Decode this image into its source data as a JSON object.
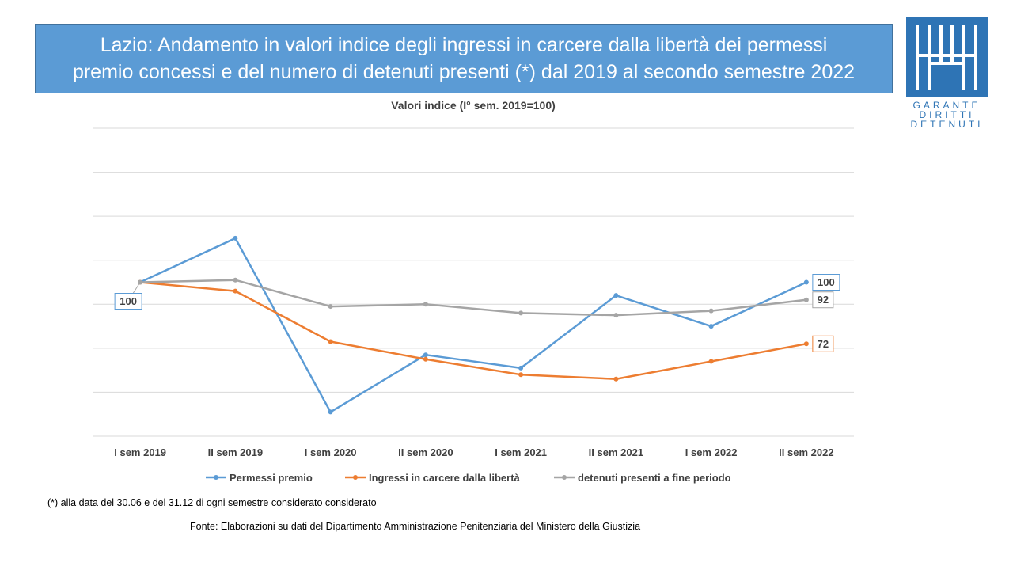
{
  "title": "Lazio: Andamento in valori indice degli ingressi in carcere dalla libertà dei permessi\npremio concessi e del numero di detenuti presenti (*) dal 2019 al secondo semestre 2022",
  "logo": {
    "line1": "GARANTE",
    "line2": "DIRITTI",
    "line3": "DETENUTI",
    "icon": "garante-logo-icon"
  },
  "footnote": "(*) alla data del 30.06 e del 31.12 di ogni semestre considerato  considerato",
  "source": "Fonte:  Elaborazioni su dati del Dipartimento  Amministrazione  Penitenziaria del Ministero della Giustizia",
  "chart_data": {
    "type": "line",
    "title": "Valori indice (I° sem. 2019=100)",
    "categories": [
      "I sem 2019",
      "II sem 2019",
      "I sem 2020",
      "II sem 2020",
      "I sem 2021",
      "II sem 2021",
      "I sem 2022",
      "II sem 2022"
    ],
    "ylim": [
      30,
      170
    ],
    "grid": true,
    "legend_position": "bottom",
    "series": [
      {
        "name": "Permessi premio",
        "color": "#5b9bd5",
        "values": [
          100,
          120,
          41,
          67,
          61,
          94,
          80,
          100
        ]
      },
      {
        "name": "Ingressi in carcere dalla libertà",
        "color": "#ed7d31",
        "values": [
          100,
          96,
          73,
          65,
          58,
          56,
          64,
          72
        ]
      },
      {
        "name": "detenuti presenti a fine periodo",
        "color": "#a5a5a5",
        "values": [
          100,
          101,
          89,
          90,
          86,
          85,
          87,
          92
        ]
      }
    ],
    "data_labels": [
      {
        "series": 0,
        "point": 0,
        "text": "100"
      },
      {
        "series": 0,
        "point": 7,
        "text": "100"
      },
      {
        "series": 2,
        "point": 7,
        "text": "92"
      },
      {
        "series": 1,
        "point": 7,
        "text": "72"
      }
    ]
  }
}
